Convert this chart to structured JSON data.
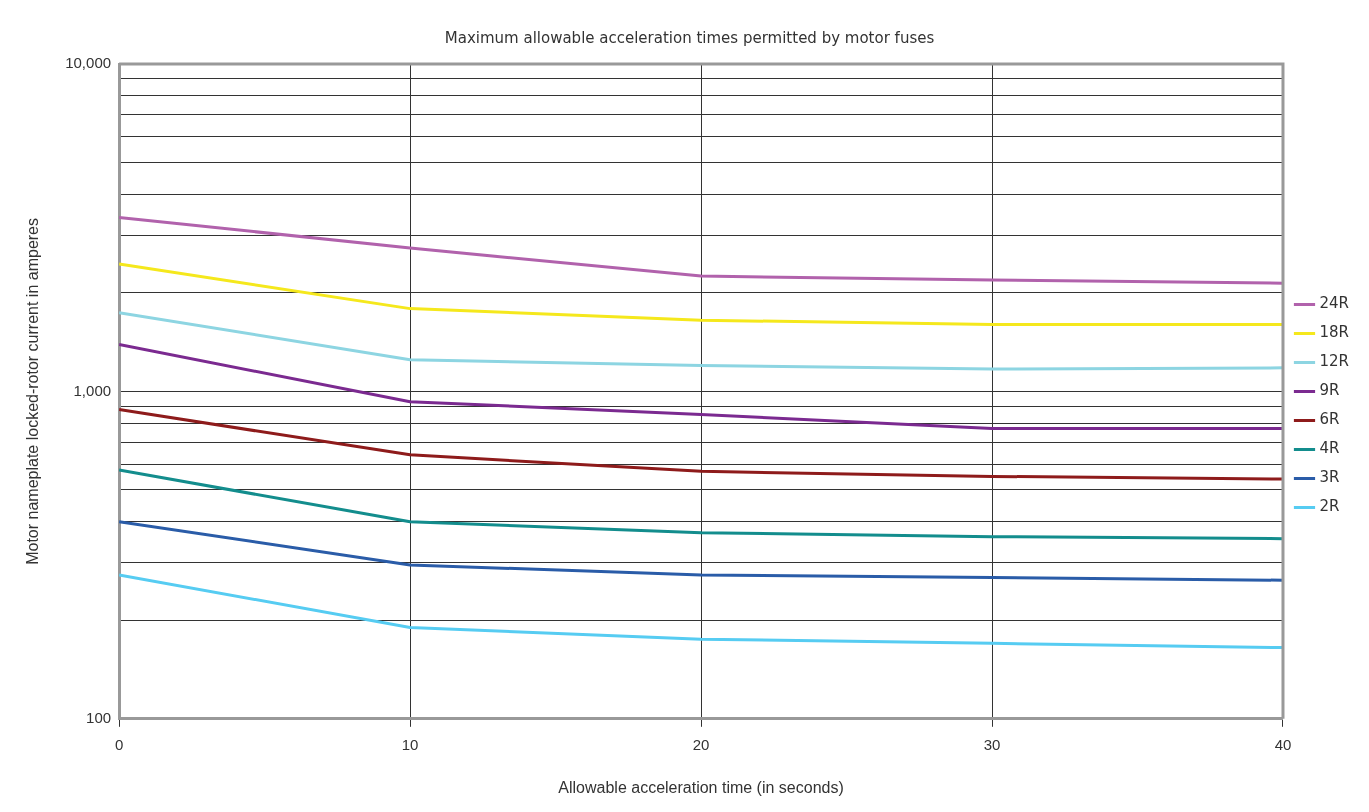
{
  "chart_data": {
    "type": "line",
    "title": "Maximum allowable acceleration times permitted by motor fuses",
    "xlabel": "Allowable acceleration time (in seconds)",
    "ylabel": "Motor nameplate locked-rotor current in amperes",
    "x": [
      0,
      10,
      20,
      30,
      40
    ],
    "xlim": [
      0,
      40
    ],
    "xticks": [
      0,
      10,
      20,
      30,
      40
    ],
    "ylim": [
      100,
      10000
    ],
    "yticks": [
      {
        "value": 100,
        "label": "100"
      },
      {
        "value": 1000,
        "label": "1,000"
      },
      {
        "value": 10000,
        "label": "10,000"
      }
    ],
    "log": "y",
    "grid": true,
    "legend": "right",
    "marker": "none",
    "line_style": "solid",
    "series": [
      {
        "name": "24R",
        "color": "#b162ac",
        "values": [
          3400,
          2740,
          2250,
          2190,
          2140
        ]
      },
      {
        "name": "18R",
        "color": "#f5e81c",
        "values": [
          2450,
          1790,
          1650,
          1600,
          1600
        ]
      },
      {
        "name": "12R",
        "color": "#8dd5e2",
        "values": [
          1740,
          1250,
          1200,
          1170,
          1180
        ]
      },
      {
        "name": "9R",
        "color": "#7b2a90",
        "values": [
          1390,
          930,
          850,
          770,
          770
        ]
      },
      {
        "name": "6R",
        "color": "#8e1b1b",
        "values": [
          880,
          640,
          570,
          550,
          540
        ]
      },
      {
        "name": "4R",
        "color": "#138d8d",
        "values": [
          575,
          400,
          370,
          360,
          355
        ]
      },
      {
        "name": "3R",
        "color": "#2a5ca8",
        "values": [
          400,
          295,
          275,
          270,
          265
        ]
      },
      {
        "name": "2R",
        "color": "#56ccf2",
        "values": [
          275,
          190,
          175,
          170,
          165
        ]
      }
    ]
  }
}
